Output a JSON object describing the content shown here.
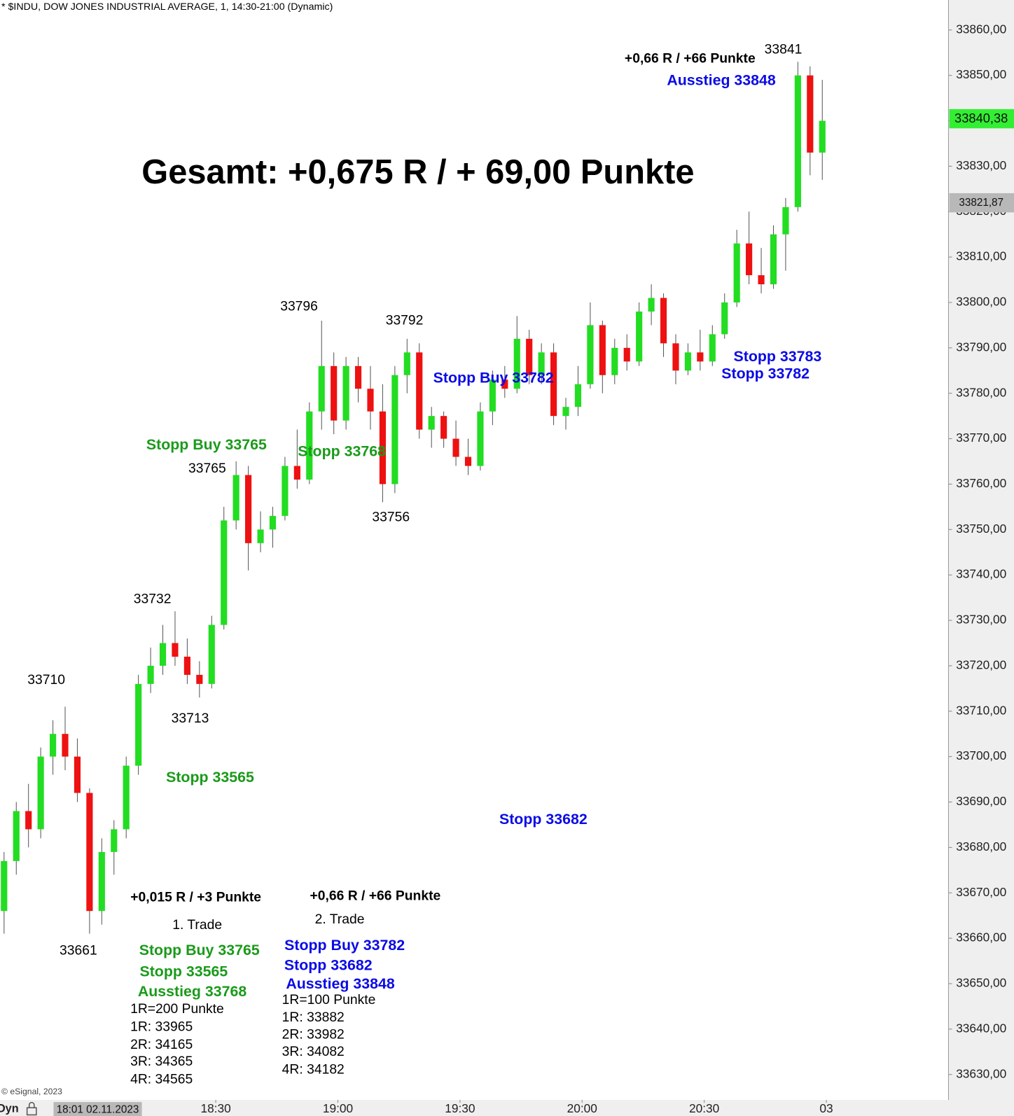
{
  "chart_data": {
    "type": "candlestick",
    "title": "* $INDU, DOW JONES INDUSTRIAL AVERAGE, 1, 14:30-21:00 (Dynamic)",
    "headline": "Gesamt: +0,675 R / + 69,00 Punkte",
    "up_color": "#22dd22",
    "down_color": "#ee1111",
    "x": [
      "17:38",
      "17:41",
      "17:44",
      "17:47",
      "17:50",
      "17:53",
      "17:56",
      "17:59",
      "18:02",
      "18:05",
      "18:08",
      "18:11",
      "18:14",
      "18:17",
      "18:20",
      "18:23",
      "18:26",
      "18:29",
      "18:32",
      "18:35",
      "18:38",
      "18:41",
      "18:44",
      "18:47",
      "18:50",
      "18:53",
      "18:56",
      "18:59",
      "19:02",
      "19:05",
      "19:08",
      "19:11",
      "19:14",
      "19:17",
      "19:20",
      "19:23",
      "19:26",
      "19:29",
      "19:32",
      "19:35",
      "19:38",
      "19:41",
      "19:44",
      "19:47",
      "19:50",
      "19:53",
      "19:56",
      "19:59",
      "20:02",
      "20:05",
      "20:08",
      "20:11",
      "20:14",
      "20:17",
      "20:20",
      "20:23",
      "20:26",
      "20:29",
      "20:32",
      "20:35",
      "20:38",
      "20:41",
      "20:44",
      "20:47",
      "20:50",
      "20:53",
      "20:56",
      "20:59"
    ],
    "open": [
      33666,
      33677,
      33688,
      33684,
      33700,
      33705,
      33700,
      33692,
      33666,
      33679,
      33684,
      33698,
      33716,
      33720,
      33725,
      33722,
      33718,
      33716,
      33729,
      33752,
      33762,
      33747,
      33750,
      33753,
      33764,
      33761,
      33776,
      33786,
      33774,
      33786,
      33781,
      33776,
      33760,
      33784,
      33789,
      33772,
      33775,
      33770,
      33766,
      33764,
      33776,
      33783,
      33781,
      33792,
      33784,
      33789,
      33775,
      33777,
      33782,
      33795,
      33784,
      33790,
      33787,
      33798,
      33801,
      33791,
      33785,
      33789,
      33787,
      33793,
      33800,
      33813,
      33806,
      33804,
      33815,
      33821,
      33850,
      33833
    ],
    "high": [
      33679,
      33690,
      33694,
      33702,
      33708,
      33711,
      33704,
      33693,
      33682,
      33686,
      33700,
      33718,
      33724,
      33729,
      33732,
      33726,
      33721,
      33731,
      33755,
      33765,
      33764,
      33754,
      33755,
      33766,
      33772,
      33778,
      33796,
      33789,
      33788,
      33788,
      33786,
      33782,
      33786,
      33792,
      33791,
      33777,
      33776,
      33774,
      33770,
      33778,
      33785,
      33786,
      33797,
      33794,
      33791,
      33791,
      33779,
      33786,
      33800,
      33796,
      33792,
      33793,
      33800,
      33804,
      33802,
      33793,
      33791,
      33794,
      33795,
      33802,
      33816,
      33820,
      33812,
      33817,
      33823,
      33853,
      33852,
      33849
    ],
    "low": [
      33661,
      33674,
      33680,
      33682,
      33696,
      33697,
      33690,
      33661,
      33663,
      33674,
      33682,
      33696,
      33714,
      33718,
      33720,
      33716,
      33713,
      33715,
      33728,
      33750,
      33741,
      33745,
      33746,
      33752,
      33759,
      33760,
      33772,
      33771,
      33772,
      33778,
      33772,
      33756,
      33758,
      33780,
      33770,
      33768,
      33768,
      33764,
      33762,
      33763,
      33773,
      33779,
      33780,
      33782,
      33782,
      33773,
      33772,
      33775,
      33781,
      33780,
      33782,
      33785,
      33786,
      33795,
      33788,
      33782,
      33784,
      33785,
      33786,
      33792,
      33799,
      33804,
      33802,
      33803,
      33807,
      33820,
      33828,
      33827
    ],
    "close": [
      33677,
      33688,
      33684,
      33700,
      33705,
      33700,
      33692,
      33666,
      33679,
      33684,
      33698,
      33716,
      33720,
      33725,
      33722,
      33718,
      33716,
      33729,
      33752,
      33762,
      33747,
      33750,
      33753,
      33764,
      33761,
      33776,
      33786,
      33774,
      33786,
      33781,
      33776,
      33760,
      33784,
      33789,
      33772,
      33775,
      33770,
      33766,
      33764,
      33776,
      33783,
      33781,
      33792,
      33784,
      33789,
      33775,
      33777,
      33782,
      33795,
      33784,
      33790,
      33787,
      33798,
      33801,
      33791,
      33785,
      33789,
      33787,
      33793,
      33800,
      33813,
      33806,
      33804,
      33815,
      33821,
      33850,
      33833,
      33840
    ],
    "xlim": [
      "17:37",
      "21:30"
    ],
    "xticks": [
      "18:30",
      "19:00",
      "19:30",
      "20:00",
      "20:30",
      {
        "value": "21:00",
        "label": "03"
      }
    ],
    "cursor": {
      "value": "18:01",
      "label": "18:01 02.11.2023"
    },
    "ylim": [
      33624.4,
      33866.6
    ],
    "yticks": [
      {
        "value": 33630,
        "label": "33630,00"
      },
      {
        "value": 33640,
        "label": "33640,00"
      },
      {
        "value": 33650,
        "label": "33650,00"
      },
      {
        "value": 33660,
        "label": "33660,00"
      },
      {
        "value": 33670,
        "label": "33670,00"
      },
      {
        "value": 33680,
        "label": "33680,00"
      },
      {
        "value": 33690,
        "label": "33690,00"
      },
      {
        "value": 33700,
        "label": "33700,00"
      },
      {
        "value": 33710,
        "label": "33710,00"
      },
      {
        "value": 33720,
        "label": "33720,00"
      },
      {
        "value": 33730,
        "label": "33730,00"
      },
      {
        "value": 33740,
        "label": "33740,00"
      },
      {
        "value": 33750,
        "label": "33750,00"
      },
      {
        "value": 33760,
        "label": "33760,00"
      },
      {
        "value": 33770,
        "label": "33770,00"
      },
      {
        "value": 33780,
        "label": "33780,00"
      },
      {
        "value": 33790,
        "label": "33790,00"
      },
      {
        "value": 33800,
        "label": "33800,00"
      },
      {
        "value": 33810,
        "label": "33810,00"
      },
      {
        "value": 33820,
        "label": "33820,00"
      },
      {
        "value": 33830,
        "label": "33830,00"
      },
      {
        "value": 33840,
        "label": "33840,00"
      },
      {
        "value": 33850,
        "label": "33850,00"
      },
      {
        "value": 33860,
        "label": "33860,00"
      }
    ],
    "price_tags": [
      {
        "value": 33840.38,
        "label": "33840,38",
        "color": "#33ee33"
      },
      {
        "value": 33821.87,
        "label": "33821,87",
        "color": "#b8b8b8"
      }
    ],
    "annotations": [
      {
        "text": "Gesamt: +0,675 R / + 69,00 Punkte",
        "color": "#000000",
        "bold": true
      },
      {
        "text": "+0,66 R / +66 Punkte",
        "color": "#000000",
        "bold": true
      },
      {
        "text": "Ausstieg 33848",
        "color": "#0a0ae6",
        "bold": true
      },
      {
        "text": "33841",
        "color": "#000000",
        "bold": false
      },
      {
        "text": "33796",
        "color": "#000000",
        "bold": false
      },
      {
        "text": "33792",
        "color": "#000000",
        "bold": false
      },
      {
        "text": "Stopp Buy 33782",
        "color": "#0a0ae6",
        "bold": true
      },
      {
        "text": "Stopp 33783",
        "color": "#0a0ae6",
        "bold": true
      },
      {
        "text": "Stopp 33782",
        "color": "#0a0ae6",
        "bold": true
      },
      {
        "text": "Stopp Buy 33765",
        "color": "#1a9a1a",
        "bold": true
      },
      {
        "text": "Stopp 33768",
        "color": "#1a9a1a",
        "bold": true
      },
      {
        "text": "33765",
        "color": "#000000",
        "bold": false
      },
      {
        "text": "33756",
        "color": "#000000",
        "bold": false
      },
      {
        "text": "33732",
        "color": "#000000",
        "bold": false
      },
      {
        "text": "33710",
        "color": "#000000",
        "bold": false
      },
      {
        "text": "33713",
        "color": "#000000",
        "bold": false
      },
      {
        "text": "Stopp 33565",
        "color": "#1a9a1a",
        "bold": true
      },
      {
        "text": "Stopp 33682",
        "color": "#0a0ae6",
        "bold": true
      },
      {
        "text": "+0,015 R / +3 Punkte",
        "color": "#000000",
        "bold": true
      },
      {
        "text": "+0,66 R / +66 Punkte",
        "color": "#000000",
        "bold": true
      },
      {
        "text": "1. Trade",
        "color": "#000000",
        "bold": false
      },
      {
        "text": "2. Trade",
        "color": "#000000",
        "bold": false
      },
      {
        "text": "33661",
        "color": "#000000",
        "bold": false
      },
      {
        "text": "Stopp Buy 33765",
        "color": "#1a9a1a",
        "bold": true
      },
      {
        "text": "Stopp 33565",
        "color": "#1a9a1a",
        "bold": true
      },
      {
        "text": "Ausstieg 33768",
        "color": "#1a9a1a",
        "bold": true
      },
      {
        "text": "Stopp Buy 33782",
        "color": "#0a0ae6",
        "bold": true
      },
      {
        "text": "Stopp 33682",
        "color": "#0a0ae6",
        "bold": true
      },
      {
        "text": "Ausstieg 33848",
        "color": "#0a0ae6",
        "bold": true
      },
      {
        "text": "1R=200 Punkte",
        "color": "#000000",
        "bold": false
      },
      {
        "text": "1R: 33965",
        "color": "#000000",
        "bold": false
      },
      {
        "text": "2R: 34165",
        "color": "#000000",
        "bold": false
      },
      {
        "text": "3R: 34365",
        "color": "#000000",
        "bold": false
      },
      {
        "text": "4R: 34565",
        "color": "#000000",
        "bold": false
      },
      {
        "text": "1R=100 Punkte",
        "color": "#000000",
        "bold": false
      },
      {
        "text": "1R: 33882",
        "color": "#000000",
        "bold": false
      },
      {
        "text": "2R: 33982",
        "color": "#000000",
        "bold": false
      },
      {
        "text": "3R: 34082",
        "color": "#000000",
        "bold": false
      },
      {
        "text": "4R: 34182",
        "color": "#000000",
        "bold": false
      }
    ],
    "copyright": "© eSignal, 2023",
    "mode_label": "Dyn"
  }
}
